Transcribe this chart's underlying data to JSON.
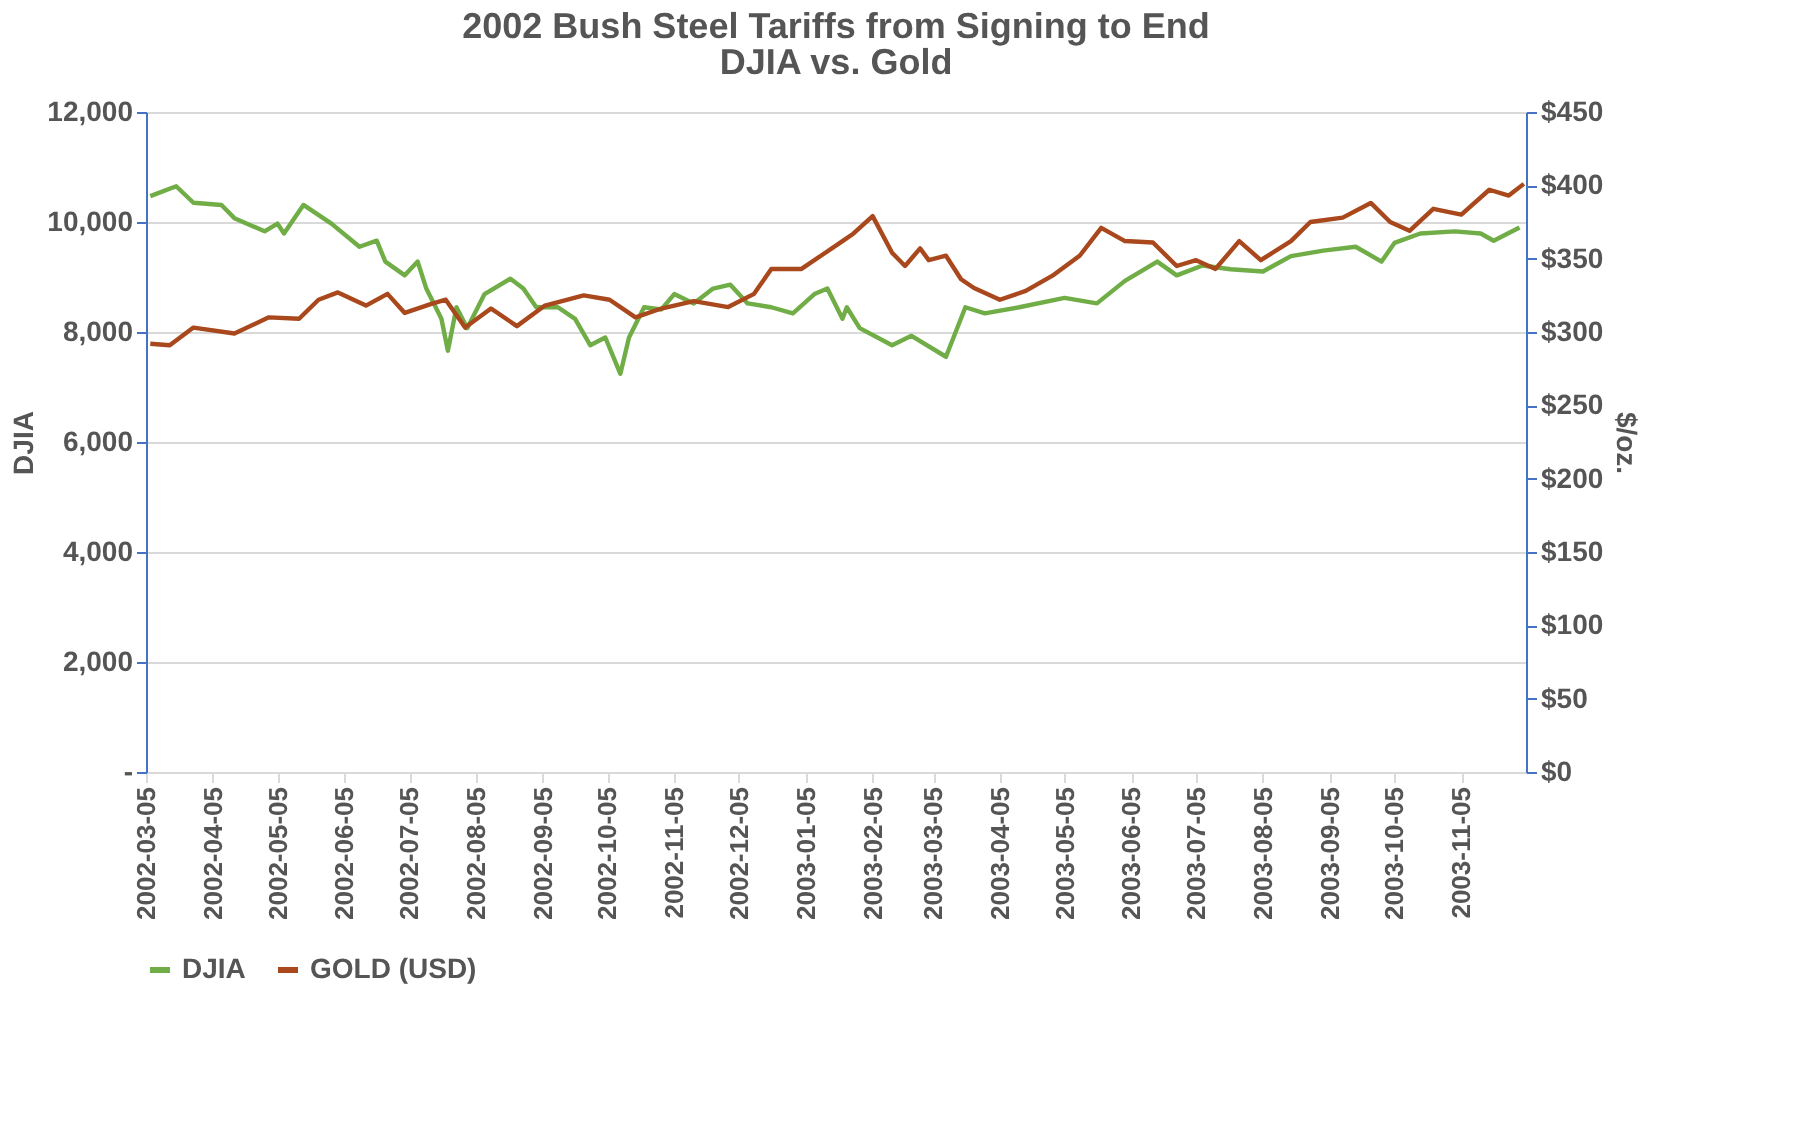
{
  "chart_data": {
    "type": "line",
    "title": "2002 Bush Steel Tariffs from Signing to End",
    "subtitle": "DJIA vs. Gold",
    "ylabel": "DJIA",
    "y2label": "$/oz.",
    "xlim": [
      "2002-03-05",
      "2003-12-05"
    ],
    "xticks": [
      "2002-03-05",
      "2002-04-05",
      "2002-05-05",
      "2002-06-05",
      "2002-07-05",
      "2002-08-05",
      "2002-09-05",
      "2002-10-05",
      "2002-11-05",
      "2002-12-05",
      "2003-01-05",
      "2003-02-05",
      "2003-03-05",
      "2003-04-05",
      "2003-05-05",
      "2003-06-05",
      "2003-07-05",
      "2003-08-05",
      "2003-09-05",
      "2003-10-05",
      "2003-11-05"
    ],
    "ylim": [
      0,
      12000
    ],
    "yticks": [
      {
        "value": 0,
        "label": "-"
      },
      {
        "value": 2000,
        "label": "2,000"
      },
      {
        "value": 4000,
        "label": "4,000"
      },
      {
        "value": 6000,
        "label": "6,000"
      },
      {
        "value": 8000,
        "label": "8,000"
      },
      {
        "value": 10000,
        "label": "10,000"
      },
      {
        "value": 12000,
        "label": "12,000"
      }
    ],
    "y2lim": [
      0,
      450
    ],
    "y2ticks": [
      {
        "value": 0,
        "label": "$0"
      },
      {
        "value": 50,
        "label": "$50"
      },
      {
        "value": 100,
        "label": "$100"
      },
      {
        "value": 150,
        "label": "$150"
      },
      {
        "value": 200,
        "label": "$200"
      },
      {
        "value": 250,
        "label": "$250"
      },
      {
        "value": 300,
        "label": "$300"
      },
      {
        "value": 350,
        "label": "$350"
      },
      {
        "value": 400,
        "label": "$400"
      },
      {
        "value": 450,
        "label": "$450"
      }
    ],
    "grid": "y",
    "legend": "bottom",
    "marker": "none",
    "line_style": "solid",
    "series": [
      {
        "name": "DJIA",
        "color": "#70ad47",
        "axis": "y",
        "x": [
          "2002-03-07",
          "2002-03-19",
          "2002-03-27",
          "2002-04-09",
          "2002-04-15",
          "2002-04-29",
          "2002-05-05",
          "2002-05-08",
          "2002-05-17",
          "2002-05-30",
          "2002-06-12",
          "2002-06-20",
          "2002-06-24",
          "2002-07-03",
          "2002-07-09",
          "2002-07-13",
          "2002-07-20",
          "2002-07-23",
          "2002-07-27",
          "2002-08-01",
          "2002-08-09",
          "2002-08-21",
          "2002-08-27",
          "2002-09-02",
          "2002-09-12",
          "2002-09-20",
          "2002-09-27",
          "2002-10-04",
          "2002-10-11",
          "2002-10-15",
          "2002-10-22",
          "2002-10-30",
          "2002-11-05",
          "2002-11-14",
          "2002-11-23",
          "2002-12-01",
          "2002-12-09",
          "2002-12-20",
          "2002-12-30",
          "2003-01-09",
          "2003-01-15",
          "2003-01-22",
          "2003-01-24",
          "2003-01-30",
          "2003-02-14",
          "2003-02-23",
          "2003-03-11",
          "2003-03-20",
          "2003-03-29",
          "2003-04-14",
          "2003-05-05",
          "2003-05-20",
          "2003-06-02",
          "2003-06-17",
          "2003-06-26",
          "2003-07-08",
          "2003-07-21",
          "2003-08-05",
          "2003-08-18",
          "2003-09-02",
          "2003-09-17",
          "2003-09-29",
          "2003-10-05",
          "2003-10-17",
          "2003-11-02",
          "2003-11-14",
          "2003-11-20",
          "2003-12-02"
        ],
        "values": [
          10470,
          10650,
          10350,
          10310,
          10070,
          9830,
          9970,
          9790,
          10310,
          9970,
          9550,
          9660,
          9280,
          9030,
          9280,
          8790,
          8240,
          7660,
          8450,
          8070,
          8690,
          8970,
          8790,
          8450,
          8450,
          8240,
          7760,
          7900,
          7240,
          7900,
          8450,
          8410,
          8690,
          8520,
          8790,
          8860,
          8520,
          8450,
          8340,
          8690,
          8790,
          8240,
          8450,
          8070,
          7760,
          7930,
          7550,
          8450,
          8340,
          8450,
          8620,
          8520,
          8930,
          9280,
          9030,
          9210,
          9140,
          9100,
          9380,
          9480,
          9550,
          9280,
          9620,
          9790,
          9830,
          9790,
          9660,
          9900
        ]
      },
      {
        "name": "GOLD (USD)",
        "color": "#a9481c",
        "axis": "y2",
        "x": [
          "2002-03-07",
          "2002-03-16",
          "2002-03-27",
          "2002-04-15",
          "2002-05-01",
          "2002-05-15",
          "2002-05-24",
          "2002-06-02",
          "2002-06-15",
          "2002-06-25",
          "2002-07-03",
          "2002-07-15",
          "2002-07-22",
          "2002-07-31",
          "2002-08-12",
          "2002-08-24",
          "2002-09-06",
          "2002-09-24",
          "2002-10-06",
          "2002-10-18",
          "2002-10-30",
          "2002-11-14",
          "2002-11-30",
          "2002-12-12",
          "2002-12-20",
          "2003-01-03",
          "2003-01-12",
          "2003-01-22",
          "2003-01-27",
          "2003-02-05",
          "2003-02-14",
          "2003-02-20",
          "2003-02-27",
          "2003-03-03",
          "2003-03-11",
          "2003-03-18",
          "2003-03-24",
          "2003-04-05",
          "2003-04-17",
          "2003-04-30",
          "2003-05-12",
          "2003-05-22",
          "2003-06-02",
          "2003-06-15",
          "2003-06-26",
          "2003-07-05",
          "2003-07-14",
          "2003-07-25",
          "2003-08-04",
          "2003-08-18",
          "2003-08-27",
          "2003-09-11",
          "2003-09-24",
          "2003-10-03",
          "2003-10-12",
          "2003-10-23",
          "2003-11-05",
          "2003-11-18",
          "2003-11-27",
          "2003-12-04"
        ],
        "values": [
          292,
          291,
          303,
          299,
          310,
          309,
          322,
          327,
          318,
          326,
          313,
          319,
          322,
          303,
          316,
          304,
          318,
          325,
          322,
          310,
          316,
          321,
          317,
          326,
          343,
          343,
          352,
          362,
          367,
          379,
          354,
          345,
          357,
          349,
          352,
          336,
          330,
          322,
          328,
          339,
          352,
          371,
          362,
          361,
          345,
          349,
          343,
          362,
          349,
          362,
          375,
          378,
          388,
          375,
          369,
          384,
          380,
          397,
          393,
          401
        ]
      }
    ]
  }
}
